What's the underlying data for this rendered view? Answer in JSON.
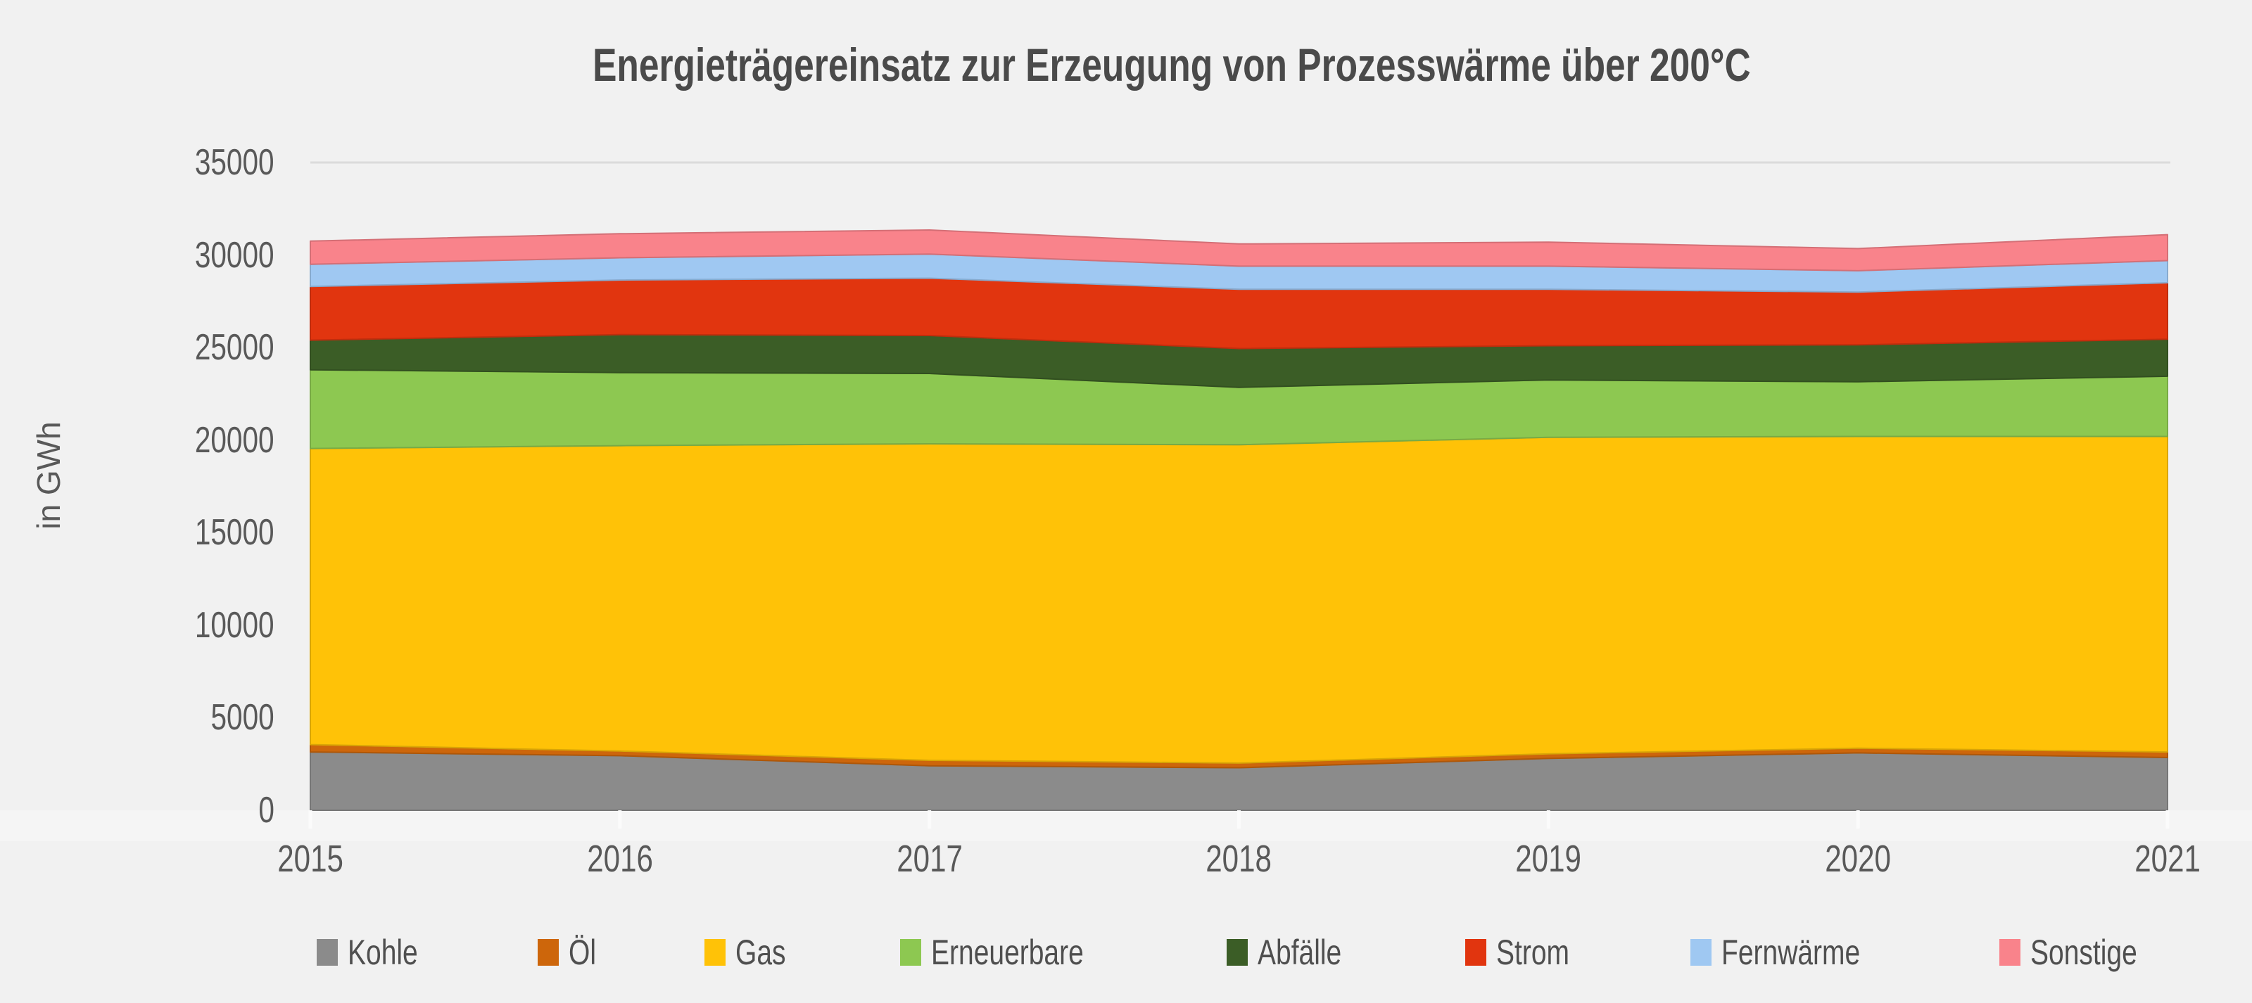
{
  "title": "Energieträgereinsatz zur Erzeugung von Prozesswärme über 200°C",
  "y_axis": {
    "label": "in GWh",
    "ticks": [
      "0",
      "5000",
      "10000",
      "15000",
      "20000",
      "25000",
      "30000",
      "35000"
    ],
    "max": 35000
  },
  "x_axis": {
    "ticks": [
      "2015",
      "2016",
      "2017",
      "2018",
      "2019",
      "2020",
      "2021"
    ]
  },
  "legend": [
    {
      "label": "Kohle",
      "color": "#8B8B8B"
    },
    {
      "label": "Öl",
      "color": "#CD660B"
    },
    {
      "label": "Gas",
      "color": "#FFC207"
    },
    {
      "label": "Erneuerbare",
      "color": "#8DC851"
    },
    {
      "label": "Abfälle",
      "color": "#3B5D26"
    },
    {
      "label": "Strom",
      "color": "#E1350F"
    },
    {
      "label": "Fernwärme",
      "color": "#9FC8F2"
    },
    {
      "label": "Sonstige",
      "color": "#F9838B"
    }
  ],
  "chart_data": {
    "type": "area",
    "stacked": true,
    "title": "Energieträgereinsatz zur Erzeugung von Prozesswärme über 200°C",
    "xlabel": "",
    "ylabel": "in GWh",
    "ylim": [
      0,
      35000
    ],
    "grid": "single-top-line-at-35000",
    "legend_position": "bottom",
    "x": [
      2015,
      2016,
      2017,
      2018,
      2019,
      2020,
      2021
    ],
    "series": [
      {
        "name": "Kohle",
        "color": "#8B8B8B",
        "values": [
          3150,
          2950,
          2400,
          2300,
          2800,
          3100,
          2850
        ]
      },
      {
        "name": "Öl",
        "color": "#CD660B",
        "values": [
          400,
          250,
          300,
          250,
          250,
          250,
          300
        ]
      },
      {
        "name": "Gas",
        "color": "#FFC207",
        "values": [
          16000,
          16500,
          17100,
          17200,
          17100,
          16850,
          17050
        ]
      },
      {
        "name": "Erneuerbare",
        "color": "#8DC851",
        "values": [
          4250,
          3950,
          3800,
          3100,
          3100,
          2950,
          3250
        ]
      },
      {
        "name": "Abfälle",
        "color": "#3B5D26",
        "values": [
          1600,
          2050,
          2050,
          2100,
          1850,
          2000,
          2000
        ]
      },
      {
        "name": "Strom",
        "color": "#E1350F",
        "values": [
          2900,
          2950,
          3100,
          3200,
          3050,
          2850,
          3050
        ]
      },
      {
        "name": "Fernwärme",
        "color": "#9FC8F2",
        "values": [
          1200,
          1200,
          1300,
          1250,
          1250,
          1150,
          1200
        ]
      },
      {
        "name": "Sonstige",
        "color": "#F9838B",
        "values": [
          1250,
          1300,
          1300,
          1200,
          1300,
          1200,
          1400
        ]
      }
    ],
    "totals": [
      30750,
      31150,
      31350,
      30600,
      30700,
      30350,
      31100
    ]
  }
}
